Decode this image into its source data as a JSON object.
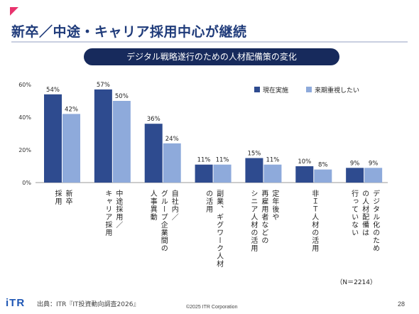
{
  "header": {
    "title": "新卒／中途・キャリア採用中心が継続",
    "banner": "デジタル戦略遂行のための人材配備策の変化"
  },
  "chart_data": {
    "type": "bar",
    "categories": [
      [
        "新卒",
        "採用"
      ],
      [
        "中途採用／",
        "キャリア採用"
      ],
      [
        "自社内／",
        "グループ企業間の",
        "人事異動"
      ],
      [
        "副業、ギグワーク人材",
        "の活用"
      ],
      [
        "定年後や",
        "再雇用者などの",
        "シニア人材の活用"
      ],
      [
        "非ＩＴ人材の活用"
      ],
      [
        "デジタル化のため",
        "の人材配備は",
        "行っていない"
      ]
    ],
    "series": [
      {
        "name": "現在実施",
        "values": [
          54,
          57,
          36,
          11,
          15,
          10,
          9
        ],
        "color": "#2e4b8f"
      },
      {
        "name": "来期重視したい",
        "values": [
          42,
          50,
          24,
          11,
          11,
          8,
          9
        ],
        "color": "#8eaadb"
      }
    ],
    "value_suffix": "%",
    "ylim": [
      0,
      60
    ],
    "yticks": [
      "0%",
      "20%",
      "40%",
      "60%"
    ],
    "legend_position": "top-right",
    "grid": false,
    "note": "（N＝2214）"
  },
  "footer": {
    "logo": "iTR",
    "source": "出典：ITR『IT投資動向調査2026』",
    "copyright": "©2025 ITR Corporation",
    "page": "28"
  }
}
